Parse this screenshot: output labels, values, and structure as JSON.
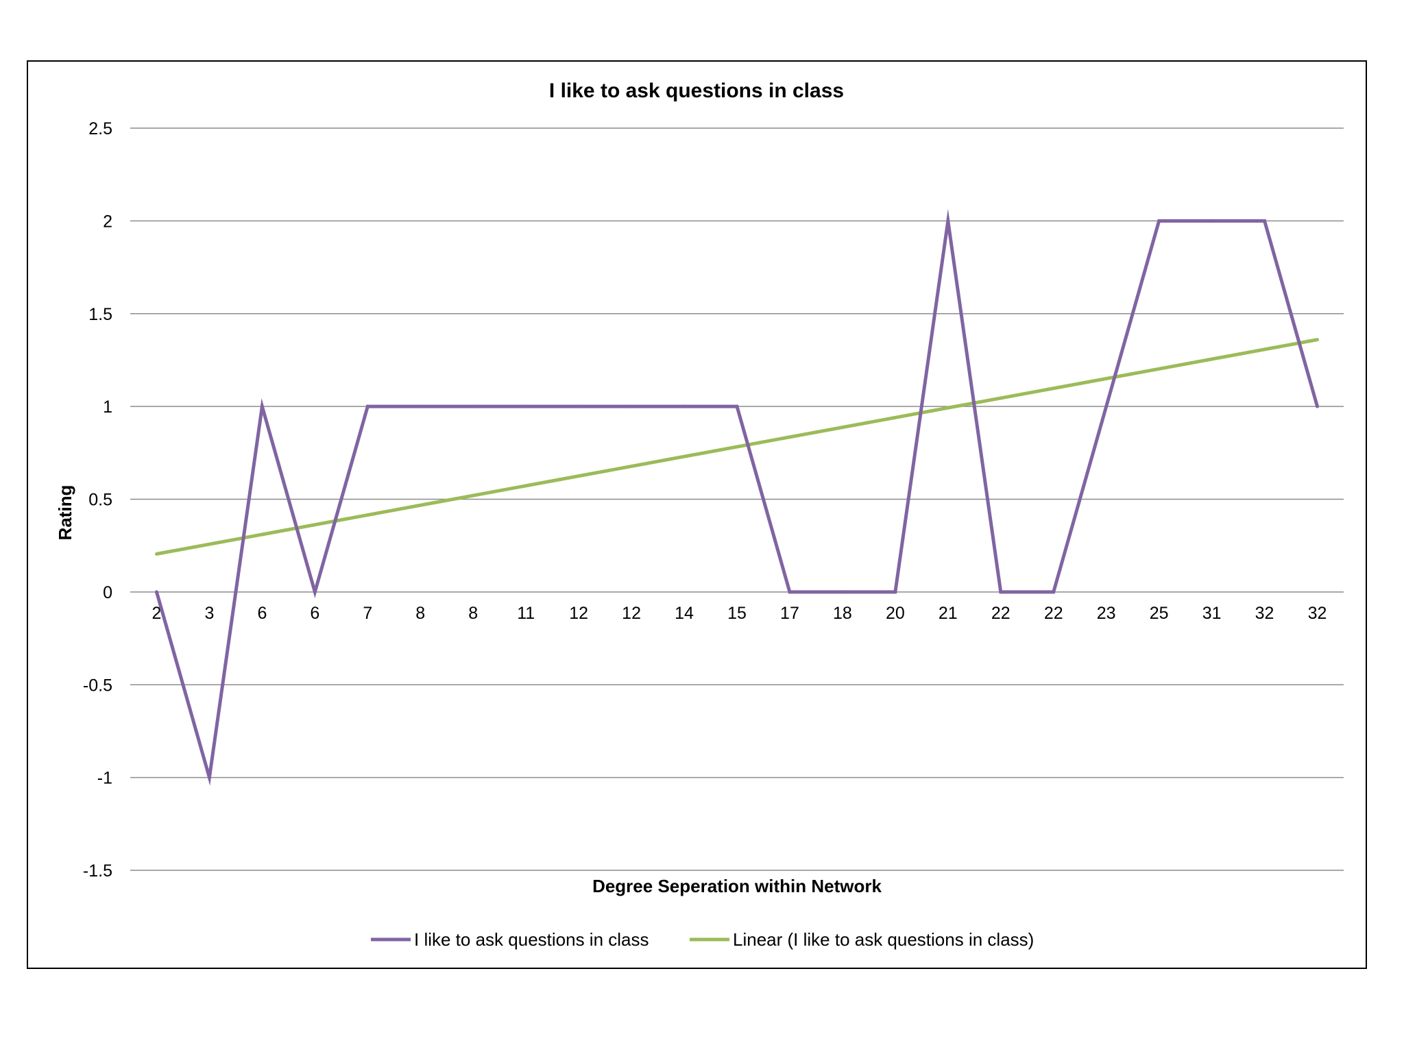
{
  "chart_data": {
    "type": "line",
    "title": "I like to ask questions in class",
    "xlabel": "Degree Seperation within Network",
    "ylabel": "Rating",
    "ylim": [
      -1.5,
      2.5
    ],
    "yticks": [
      -1.5,
      -1,
      -0.5,
      0,
      0.5,
      1,
      1.5,
      2,
      2.5
    ],
    "ytick_labels": [
      "-1.5",
      "-1",
      "-0.5",
      "0",
      "0.5",
      "1",
      "1.5",
      "2",
      "2.5"
    ],
    "grid": true,
    "legend_position": "bottom",
    "categories": [
      "2",
      "3",
      "6",
      "6",
      "7",
      "8",
      "8",
      "11",
      "12",
      "12",
      "14",
      "15",
      "17",
      "18",
      "20",
      "21",
      "22",
      "22",
      "23",
      "25",
      "31",
      "32",
      "32"
    ],
    "series": [
      {
        "name": "I like to ask questions in class",
        "color": "#8064a2",
        "values": [
          0,
          -1,
          1,
          0,
          1,
          1,
          1,
          1,
          1,
          1,
          1,
          1,
          0,
          0,
          0,
          2,
          0,
          0,
          1,
          2,
          2,
          2,
          1
        ]
      }
    ],
    "trendline": {
      "name": "Linear (I like to ask questions in class)",
      "color": "#9bbb59",
      "type": "linear",
      "start_value": 0.205,
      "end_value": 1.36
    }
  }
}
